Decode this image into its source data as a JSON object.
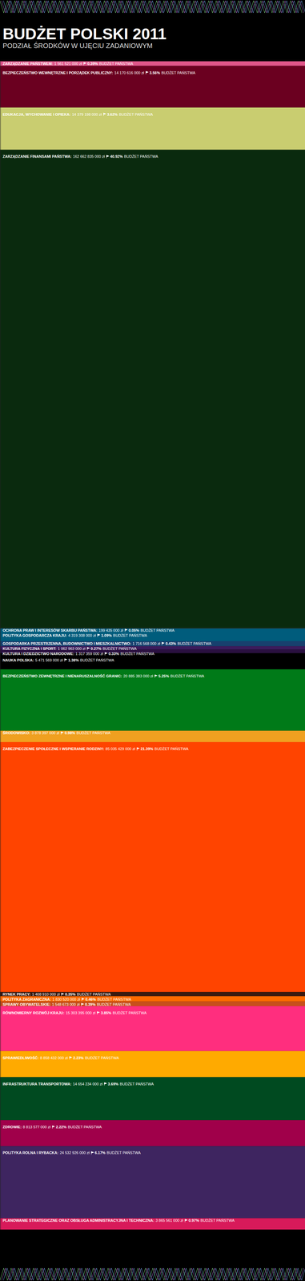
{
  "chart_data": {
    "type": "bar",
    "title": "BUDŻET POLSKI 2011",
    "subtitle": "PODZIAŁ ŚRODKÓW W UJĘCIU ZADANIOWYM",
    "stacked": true,
    "data_labels": true,
    "tick_labels": false,
    "ylim": [
      0,
      397476809000
    ],
    "categories": [
      "ZARZĄDZANIE PAŃSTWEM:",
      "BEZPIECZEŃSTWO WEWNĘTRZNE I PORZĄDEK PUBLICZNY:",
      "EDUKACJA, WYCHOWANIE I OPIEKA:",
      "ZARZĄDZANIE FINANSAMI PAŃSTWA:",
      "OCHRONA PRAW I INTERESÓW SKARBU PAŃSTWA:",
      "POLITYKA GOSPODARCZA KRAJU:",
      "GOSPODARKA PRZESTRZENNA, BUDOWNICTWO I MIESZKALNICTWO:",
      "KULTURA FIZYCZNA I SPORT:",
      "KULTURA I DZIEDZICTWO NARODOWE:",
      "NAUKA POLSKA:",
      "BEZPIECZEŃSTWO ZEWNĘTRZNE I NIENARUSZALNOŚĆ GRANIC:",
      "ŚRODOWISKO:",
      "ZABEZPIECZENIE SPOŁECZNE I WSPIERANIE RODZINY:",
      "RYNEK PRACY:",
      "POLITYKA ZAGRANICZNA:",
      "SPRAWY OBYWATELSKIE:",
      "RÓWNOMIERNY ROZWÓJ KRAJU:",
      "SPRAWIEDLIWOŚĆ:",
      "INFRASTRUKTURA TRANSPORTOWA:",
      "ZDROWIE:",
      "POLITYKA ROLNA I RYBACKA:",
      "PLANOWANIE STRATEGICZNE ORAZ OBSŁUGA ADMINISTRACYJNA I TECHNICZNA:"
    ],
    "values": [
      1561521000,
      14170616000,
      14379198000,
      162662835000,
      199435000,
      4319308000,
      1716568000,
      1062963000,
      1317359000,
      5471569000,
      20885383000,
      3878397000,
      85035429000,
      1408910000,
      1830520000,
      1548673000,
      15303395000,
      8858432000,
      14654234000,
      8813577000,
      24532926000,
      3865561000
    ],
    "value_labels": [
      "1 561 521 000 zł",
      "14 170 616 000 zł",
      "14 379 198 000 zł",
      "162 662 835 000 zł",
      "199 435 000 zł",
      "4 319 308 000 zł",
      "1 716 568 000 zł",
      "1 062 963 000 zł",
      "1 317 359 000 zł",
      "5 471 569 000 zł",
      "20 885 383 000 zł",
      "3 878 397 000 zł",
      "85 035 429 000 zł",
      "1 408 910 000 zł",
      "1 830 520 000 zł",
      "1 548 673 000 zł",
      "15 303 395 000 zł",
      "8 858 432 000 zł",
      "14 654 234 000 zł",
      "8 813 577 000 zł",
      "24 532 926 000 zł",
      "3 865 561 000 zł"
    ],
    "shares": [
      0.39,
      3.56,
      3.62,
      40.92,
      0.05,
      1.09,
      0.43,
      0.27,
      0.33,
      1.38,
      5.25,
      0.98,
      21.39,
      0.35,
      0.46,
      0.39,
      3.85,
      2.23,
      3.69,
      2.22,
      6.17,
      0.97
    ],
    "share_labels": [
      "0.39%",
      "3.56%",
      "3.62%",
      "40.92%",
      "0.05%",
      "1.09%",
      "0.43%",
      "0.27%",
      "0.33%",
      "1.38%",
      "5.25%",
      "0.98%",
      "21.39%",
      "0.35%",
      "0.46%",
      "0.39%",
      "3.85%",
      "2.23%",
      "3.69%",
      "2.22%",
      "6.17%",
      "0.97%"
    ],
    "share_suffix": "BUDŻET PAŃSTWA",
    "colors": [
      "#e0568a",
      "#6b0020",
      "#c9cd70",
      "#0a2a0e",
      "#2e3a2e",
      "#005c7c",
      "#17406e",
      "#3b1b5c",
      "#2a1040",
      "#000000",
      "#007a18",
      "#f0a020",
      "#ff4400",
      "#3a1a10",
      "#ff6a00",
      "#c8501a",
      "#ff2e7e",
      "#ffaa00",
      "#004a20",
      "#a0004a",
      "#3e2560",
      "#d81a5a"
    ]
  }
}
